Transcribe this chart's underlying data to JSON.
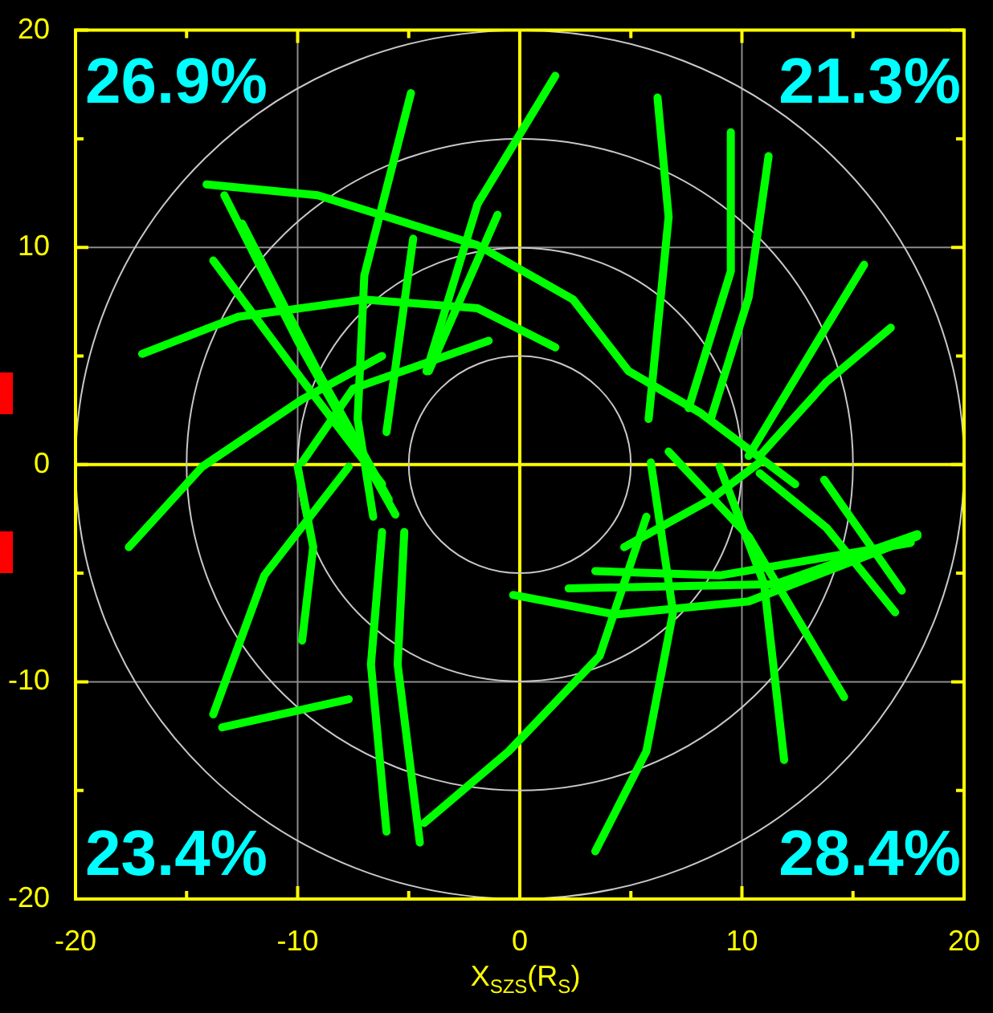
{
  "chart_data": {
    "type": "line",
    "xlabel": "X$_{SZS}$(R$_{S}$)",
    "xlim": [
      -20,
      20
    ],
    "ylim": [
      -20,
      20
    ],
    "xticks": [
      -20,
      {
        "value": -15,
        "label": null
      },
      -10,
      {
        "value": -5,
        "label": null
      },
      0,
      {
        "value": 5,
        "label": null
      },
      10,
      {
        "value": 15,
        "label": null
      },
      20
    ],
    "yticks": [
      -20,
      {
        "value": -15,
        "label": null
      },
      -10,
      {
        "value": -5,
        "label": null
      },
      0,
      {
        "value": 5,
        "label": null
      },
      10,
      {
        "value": 15,
        "label": null
      },
      20
    ],
    "grid": true,
    "legend": false,
    "marker": "none",
    "line_style": "solid",
    "annotations": [
      "26.9%",
      "21.3%",
      "23.4%",
      "28.4%"
    ],
    "series": [
      {
        "color": "#00ff00",
        "x": [
          -14.1,
          -9.1,
          -1.9,
          2.4,
          4.9,
          8.1,
          12.4
        ],
        "values": [
          12.9,
          12.4,
          10.1,
          7.6,
          4.3,
          2.4,
          -0.9
        ]
      },
      {
        "color": "#00ff00",
        "x": [
          -17.0,
          -12.7,
          -7.0,
          -1.9,
          1.6
        ],
        "values": [
          5.1,
          6.8,
          7.6,
          7.2,
          5.4
        ]
      },
      {
        "color": "#00ff00",
        "x": [
          -13.8,
          -9.8,
          -6.2
        ],
        "values": [
          9.4,
          3.9,
          -0.9
        ]
      },
      {
        "color": "#00ff00",
        "x": [
          -12.5,
          -9.1,
          -5.9
        ],
        "values": [
          11.1,
          4.3,
          -1.6
        ]
      },
      {
        "color": "#00ff00",
        "x": [
          -13.3,
          -10.0,
          -5.6
        ],
        "values": [
          12.4,
          5.7,
          -2.3
        ]
      },
      {
        "color": "#00ff00",
        "x": [
          -4.9,
          -7.0,
          -7.3,
          -6.6
        ],
        "values": [
          17.1,
          8.7,
          2.1,
          -2.4
        ]
      },
      {
        "color": "#00ff00",
        "x": [
          -4.8,
          -6.0
        ],
        "values": [
          10.4,
          1.5
        ]
      },
      {
        "color": "#00ff00",
        "x": [
          1.6,
          -1.9,
          -4.2
        ],
        "values": [
          17.9,
          12.0,
          4.3
        ]
      },
      {
        "color": "#00ff00",
        "x": [
          -1.0,
          -4.1
        ],
        "values": [
          11.5,
          4.3
        ]
      },
      {
        "color": "#00ff00",
        "x": [
          -9.8,
          -7.5,
          -1.4
        ],
        "values": [
          0.1,
          3.5,
          5.7
        ]
      },
      {
        "color": "#00ff00",
        "x": [
          -17.6,
          -14.3,
          -9.8,
          -6.2
        ],
        "values": [
          -3.8,
          -0.1,
          3.0,
          5.0
        ]
      },
      {
        "color": "#00ff00",
        "x": [
          -7.7,
          -11.5,
          -13.8
        ],
        "values": [
          -0.1,
          -5.1,
          -11.5
        ]
      },
      {
        "color": "#00ff00",
        "x": [
          -13.4,
          -7.7
        ],
        "values": [
          -12.1,
          -10.8
        ]
      },
      {
        "color": "#00ff00",
        "x": [
          -6.2,
          -6.7,
          -6.0
        ],
        "values": [
          -3.1,
          -9.2,
          -16.9
        ]
      },
      {
        "color": "#00ff00",
        "x": [
          -5.2,
          -5.5,
          -4.5
        ],
        "values": [
          -3.1,
          -9.2,
          -17.4
        ]
      },
      {
        "color": "#00ff00",
        "x": [
          -4.3,
          -0.5,
          3.6,
          5.7
        ],
        "values": [
          -16.5,
          -13.2,
          -8.8,
          -2.4
        ]
      },
      {
        "color": "#00ff00",
        "x": [
          -10.0,
          -9.3,
          -9.8
        ],
        "values": [
          -0.1,
          -3.8,
          -8.1
        ]
      },
      {
        "color": "#00ff00",
        "x": [
          6.2,
          6.7,
          5.8
        ],
        "values": [
          16.9,
          11.4,
          2.1
        ]
      },
      {
        "color": "#00ff00",
        "x": [
          9.5,
          9.5,
          7.6
        ],
        "values": [
          15.3,
          8.9,
          2.6
        ]
      },
      {
        "color": "#00ff00",
        "x": [
          11.2,
          10.3,
          8.6
        ],
        "values": [
          14.2,
          7.7,
          2.1
        ]
      },
      {
        "color": "#00ff00",
        "x": [
          15.5,
          13.6,
          10.3
        ],
        "values": [
          9.2,
          6.0,
          0.4
        ]
      },
      {
        "color": "#00ff00",
        "x": [
          16.7,
          13.8,
          10.8
        ],
        "values": [
          6.3,
          3.8,
          0.4
        ]
      },
      {
        "color": "#00ff00",
        "x": [
          -0.3,
          4.3,
          10.3,
          17.9
        ],
        "values": [
          -6.0,
          -6.9,
          -6.3,
          -3.3
        ]
      },
      {
        "color": "#00ff00",
        "x": [
          2.2,
          11.5,
          17.9
        ],
        "values": [
          -5.7,
          -5.5,
          -3.2
        ]
      },
      {
        "color": "#00ff00",
        "x": [
          3.4,
          9.0,
          17.6
        ],
        "values": [
          -4.9,
          -5.1,
          -3.6
        ]
      },
      {
        "color": "#00ff00",
        "x": [
          4.7,
          8.6,
          10.8
        ],
        "values": [
          -3.8,
          -1.6,
          0.1
        ]
      },
      {
        "color": "#00ff00",
        "x": [
          6.7,
          10.3,
          14.6
        ],
        "values": [
          0.6,
          -3.3,
          -10.7
        ]
      },
      {
        "color": "#00ff00",
        "x": [
          9.0,
          11.0,
          11.9
        ],
        "values": [
          -0.1,
          -5.5,
          -13.6
        ]
      },
      {
        "color": "#00ff00",
        "x": [
          5.9,
          6.9,
          5.7,
          3.4
        ],
        "values": [
          0.1,
          -6.8,
          -13.2,
          -17.8
        ]
      },
      {
        "color": "#00ff00",
        "x": [
          10.8,
          13.8,
          16.9
        ],
        "values": [
          -0.4,
          -2.9,
          -6.8
        ]
      },
      {
        "color": "#00ff00",
        "x": [
          13.7,
          17.2
        ],
        "values": [
          -0.7,
          -5.8
        ]
      }
    ]
  }
}
